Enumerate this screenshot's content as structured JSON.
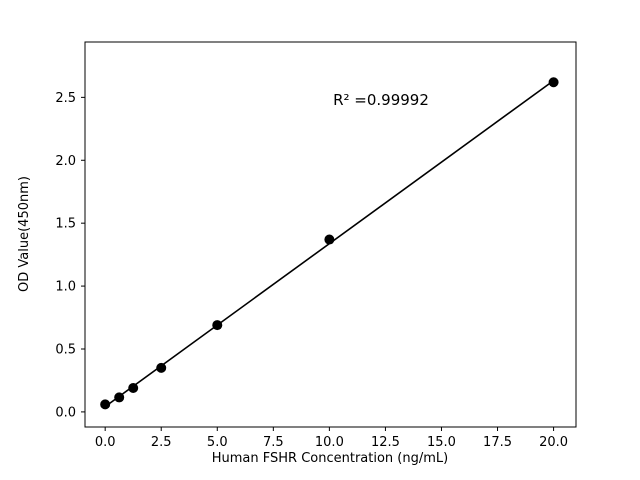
{
  "chart_data": {
    "type": "scatter",
    "title": "",
    "xlabel": "Human FSHR Concentration (ng/mL)",
    "ylabel": "OD Value(450nm)",
    "annotation": "R² =0.99992",
    "x": [
      0,
      0.625,
      1.25,
      2.5,
      5,
      10,
      20
    ],
    "y": [
      0.06,
      0.115,
      0.19,
      0.35,
      0.69,
      1.37,
      2.62
    ],
    "xticks": [
      0.0,
      2.5,
      5.0,
      7.5,
      10.0,
      12.5,
      15.0,
      17.5,
      20.0
    ],
    "yticks": [
      0.0,
      0.5,
      1.0,
      1.5,
      2.0,
      2.5
    ],
    "xlim": [
      -0.9,
      21.0
    ],
    "ylim": [
      -0.12,
      2.94
    ],
    "grid": false,
    "legend": "none",
    "fit_line": true,
    "marker_color": "#000000",
    "line_color": "#000000",
    "frame_color": "#000000"
  }
}
